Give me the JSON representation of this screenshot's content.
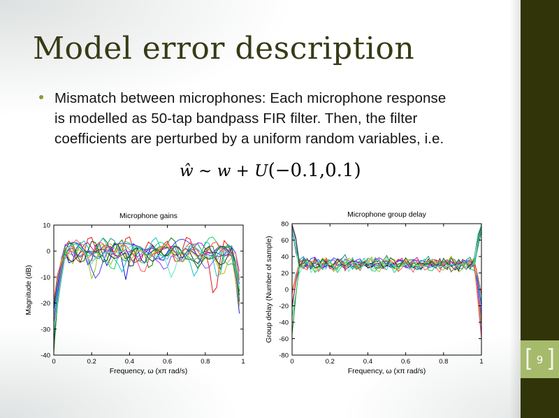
{
  "slide": {
    "title": "Model error description",
    "bullet_lines": [
      "Mismatch between microphones: Each microphone response",
      "is modelled as 50-tap bandpass FIR filter. Then, the filter",
      "coefficients are perturbed by a uniform random variables, i.e."
    ],
    "formula": {
      "lhs": "ŵ ~  ",
      "mid": "w + U",
      "args": "(−0.1,0.1)"
    },
    "page_badge": {
      "left_bracket": "[",
      "number": "9",
      "right_bracket": "]"
    },
    "colors": {
      "title_text": "#373a14",
      "sidebar": "#303408",
      "badge": "#a6ba6c",
      "bullet_marker": "#86993c"
    }
  },
  "chart_data": [
    {
      "type": "line",
      "title": "Microphone gains",
      "xlabel": "Frequency, ω (xπ rad/s)",
      "ylabel": "Magnitude (dB)",
      "xlim": [
        0,
        1
      ],
      "ylim": [
        -40,
        10
      ],
      "xticks": [
        0,
        0.2,
        0.4,
        0.6,
        0.8,
        1
      ],
      "xtick_labels": [
        "0",
        "0.2",
        "0.4",
        "0.6",
        "0.8",
        "1"
      ],
      "yticks": [
        10,
        0,
        -10,
        -20,
        -30,
        -40
      ],
      "ytick_labels": [
        "10",
        "0",
        "-10",
        "-20",
        "-30",
        "-40"
      ],
      "grid": false,
      "legend": null,
      "n_series": 15,
      "series_colors": [
        "#1515e0",
        "#1a7d1a",
        "#e01515",
        "#15c5c5",
        "#b515b5",
        "#9fc41a",
        "#2f2f2f",
        "#4040ff",
        "#18cf6e",
        "#8b45ff",
        "#0f9191",
        "#c9b410",
        "#ff5454",
        "#0b5e0b",
        "#57eec0"
      ],
      "generator": {
        "kind": "bandpass_gain",
        "seed": 7,
        "passband_mean_db": 0,
        "ripple_amp_db": 4,
        "dip_depth_db_max": 14,
        "edge_value_db_range": [
          -40,
          -18
        ],
        "edge_width": 0.05
      }
    },
    {
      "type": "line",
      "title": "Microphone group delay",
      "xlabel": "Frequency, ω (xπ rad/s)",
      "ylabel": "Group delay (Number of sample)",
      "xlim": [
        0,
        1
      ],
      "ylim": [
        -80,
        80
      ],
      "xticks": [
        0,
        0.2,
        0.4,
        0.6,
        0.8,
        1
      ],
      "xtick_labels": [
        "0",
        "0.2",
        "0.4",
        "0.6",
        "0.8",
        "1"
      ],
      "yticks": [
        80,
        60,
        40,
        20,
        0,
        -20,
        -40,
        -60,
        -80
      ],
      "ytick_labels": [
        "80",
        "60",
        "40",
        "20",
        "0",
        "-20",
        "-40",
        "-60",
        "-80"
      ],
      "grid": false,
      "legend": null,
      "n_series": 15,
      "series_colors": [
        "#1515e0",
        "#1a7d1a",
        "#e01515",
        "#15c5c5",
        "#b515b5",
        "#9fc41a",
        "#2f2f2f",
        "#4040ff",
        "#18cf6e",
        "#8b45ff",
        "#0f9191",
        "#c9b410",
        "#ff5454",
        "#0b5e0b",
        "#57eec0"
      ],
      "generator": {
        "kind": "group_delay",
        "seed": 13,
        "mean_delay": 30,
        "ripple_amp": 8,
        "edge_spike_range": [
          -78,
          79
        ],
        "edge_width": 0.035
      }
    }
  ]
}
